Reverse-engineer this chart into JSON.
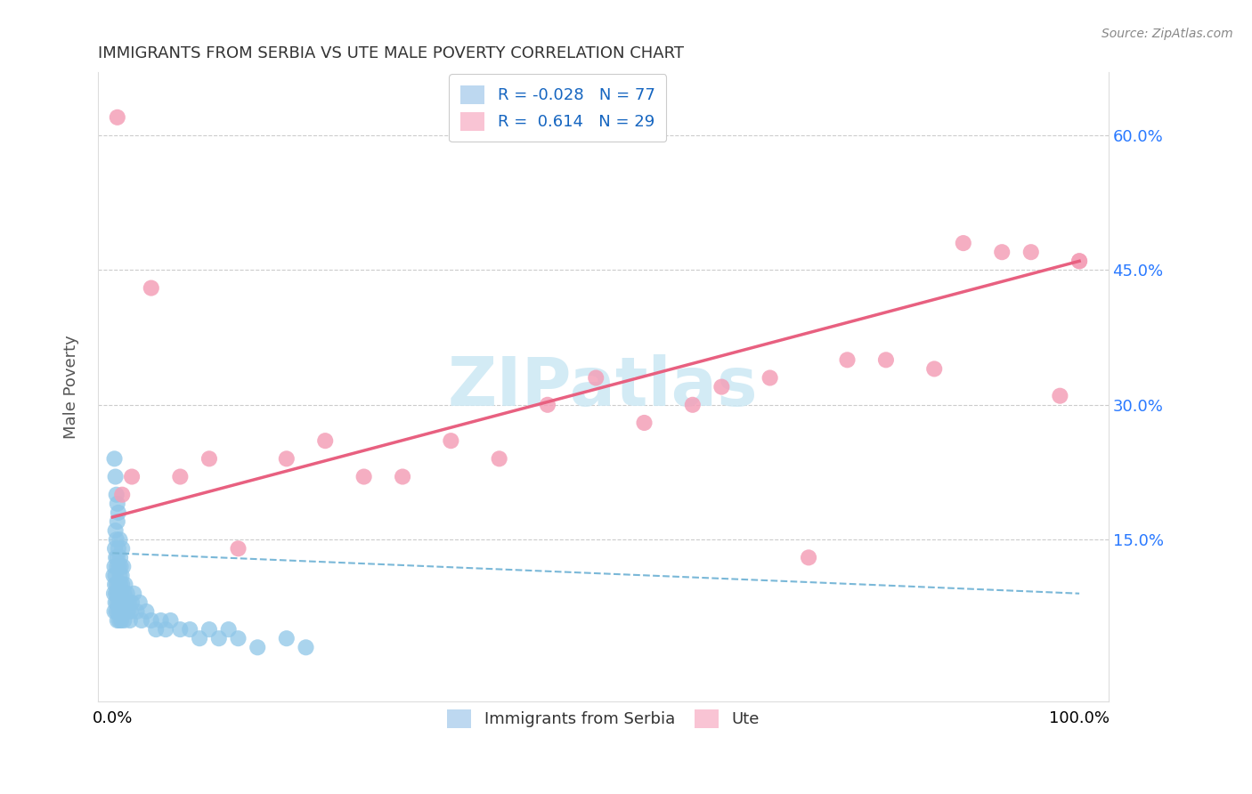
{
  "title": "IMMIGRANTS FROM SERBIA VS UTE MALE POVERTY CORRELATION CHART",
  "source": "Source: ZipAtlas.com",
  "ylabel": "Male Poverty",
  "xlim_data": [
    0,
    100
  ],
  "ylim_data": [
    0,
    65
  ],
  "ytick_vals": [
    15,
    30,
    45,
    60
  ],
  "ytick_labels_right": [
    "15.0%",
    "30.0%",
    "45.0%",
    "60.0%"
  ],
  "xtick_vals": [
    0,
    100
  ],
  "xtick_labels": [
    "0.0%",
    "100.0%"
  ],
  "legend_R1": "-0.028",
  "legend_N1": "77",
  "legend_R2": "0.614",
  "legend_N2": "29",
  "blue_color": "#8ec6e8",
  "pink_color": "#f4a0b8",
  "blue_line_color": "#7ab8d8",
  "pink_line_color": "#e86080",
  "watermark_color": "#cce8f4",
  "blue_line_y0": 13.5,
  "blue_line_y1": 9.0,
  "pink_line_y0": 17.5,
  "pink_line_y1": 46.0,
  "serbia_x": [
    0.1,
    0.15,
    0.2,
    0.2,
    0.25,
    0.25,
    0.3,
    0.3,
    0.3,
    0.35,
    0.35,
    0.4,
    0.4,
    0.4,
    0.45,
    0.45,
    0.5,
    0.5,
    0.5,
    0.5,
    0.6,
    0.6,
    0.6,
    0.65,
    0.65,
    0.7,
    0.7,
    0.75,
    0.75,
    0.8,
    0.8,
    0.8,
    0.85,
    0.85,
    0.9,
    0.9,
    0.95,
    1.0,
    1.0,
    1.0,
    1.1,
    1.1,
    1.2,
    1.2,
    1.3,
    1.4,
    1.5,
    1.6,
    1.7,
    1.8,
    1.9,
    2.0,
    2.2,
    2.5,
    2.8,
    3.0,
    3.5,
    4.0,
    4.5,
    5.0,
    5.5,
    6.0,
    7.0,
    8.0,
    9.0,
    10.0,
    11.0,
    12.0,
    13.0,
    15.0,
    18.0,
    20.0,
    0.2,
    0.3,
    0.4,
    0.5,
    0.6
  ],
  "serbia_y": [
    11.0,
    9.0,
    12.0,
    7.0,
    10.0,
    14.0,
    8.0,
    11.0,
    16.0,
    9.0,
    13.0,
    7.0,
    10.0,
    15.0,
    8.0,
    12.0,
    6.0,
    9.0,
    13.0,
    17.0,
    7.0,
    10.0,
    14.0,
    8.0,
    12.0,
    6.0,
    9.0,
    11.0,
    15.0,
    7.0,
    10.0,
    13.0,
    8.0,
    12.0,
    6.0,
    9.0,
    11.0,
    7.0,
    10.0,
    14.0,
    8.0,
    12.0,
    6.0,
    9.0,
    10.0,
    8.0,
    9.0,
    7.0,
    8.0,
    6.0,
    7.0,
    8.0,
    9.0,
    7.0,
    8.0,
    6.0,
    7.0,
    6.0,
    5.0,
    6.0,
    5.0,
    6.0,
    5.0,
    5.0,
    4.0,
    5.0,
    4.0,
    5.0,
    4.0,
    3.0,
    4.0,
    3.0,
    24.0,
    22.0,
    20.0,
    19.0,
    18.0
  ],
  "ute_x": [
    0.5,
    1.0,
    2.0,
    4.0,
    7.0,
    10.0,
    13.0,
    18.0,
    22.0,
    26.0,
    30.0,
    35.0,
    40.0,
    45.0,
    50.0,
    55.0,
    60.0,
    63.0,
    68.0,
    72.0,
    76.0,
    80.0,
    85.0,
    88.0,
    92.0,
    95.0,
    98.0,
    100.0,
    100.0
  ],
  "ute_y": [
    62.0,
    20.0,
    22.0,
    43.0,
    22.0,
    24.0,
    14.0,
    24.0,
    26.0,
    22.0,
    22.0,
    26.0,
    24.0,
    30.0,
    33.0,
    28.0,
    30.0,
    32.0,
    33.0,
    13.0,
    35.0,
    35.0,
    34.0,
    48.0,
    47.0,
    47.0,
    31.0,
    46.0,
    46.0
  ]
}
